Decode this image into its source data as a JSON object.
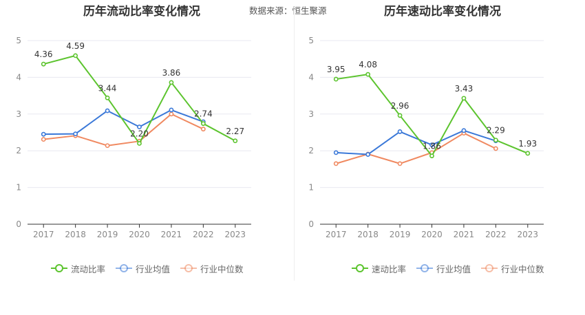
{
  "source": {
    "label": "数据来源：",
    "value": "恒生聚源"
  },
  "colors": {
    "company": "#5cc42e",
    "avg": "#3a78d8",
    "median": "#f08960",
    "grid": "#e8e8f0",
    "axis": "#333333",
    "text": "#888888"
  },
  "chart_data": [
    {
      "type": "line",
      "title": "历年流动比率变化情况",
      "x": [
        "2017",
        "2018",
        "2019",
        "2020",
        "2021",
        "2022",
        "2023"
      ],
      "ylim": [
        0,
        5
      ],
      "yticks": [
        "0",
        "1",
        "2",
        "3",
        "4",
        "5"
      ],
      "grid": true,
      "legend_position": "bottom",
      "series": [
        {
          "name": "流动比率",
          "values": [
            4.36,
            4.59,
            3.44,
            2.2,
            3.86,
            2.74,
            2.27
          ],
          "labels": [
            "4.36",
            "4.59",
            "3.44",
            "2.20",
            "3.86",
            "2.74",
            "2.27"
          ]
        },
        {
          "name": "行业均值",
          "values": [
            2.45,
            2.46,
            3.09,
            2.65,
            3.11,
            2.79,
            null
          ]
        },
        {
          "name": "行业中位数",
          "values": [
            2.31,
            2.41,
            2.14,
            2.26,
            3.0,
            2.59,
            null
          ]
        }
      ]
    },
    {
      "type": "line",
      "title": "历年速动比率变化情况",
      "x": [
        "2017",
        "2018",
        "2019",
        "2020",
        "2021",
        "2022",
        "2023"
      ],
      "ylim": [
        0,
        5
      ],
      "yticks": [
        "0",
        "1",
        "2",
        "3",
        "4",
        "5"
      ],
      "grid": true,
      "legend_position": "bottom",
      "series": [
        {
          "name": "速动比率",
          "values": [
            3.95,
            4.08,
            2.96,
            1.86,
            3.43,
            2.29,
            1.93
          ],
          "labels": [
            "3.95",
            "4.08",
            "2.96",
            "1.86",
            "3.43",
            "2.29",
            "1.93"
          ]
        },
        {
          "name": "行业均值",
          "values": [
            1.95,
            1.9,
            2.52,
            2.16,
            2.55,
            2.27,
            null
          ]
        },
        {
          "name": "行业中位数",
          "values": [
            1.65,
            1.91,
            1.65,
            1.95,
            2.48,
            2.06,
            null
          ]
        }
      ]
    }
  ]
}
